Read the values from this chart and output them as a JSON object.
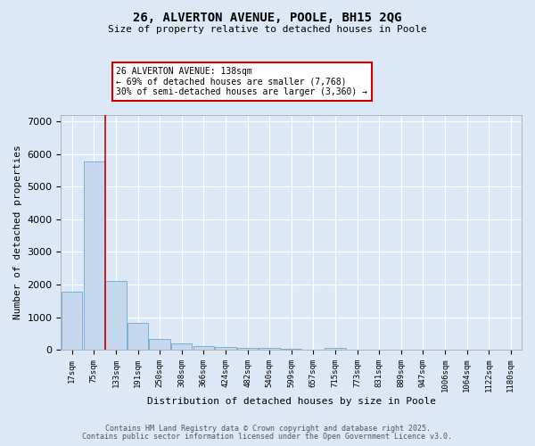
{
  "title1": "26, ALVERTON AVENUE, POOLE, BH15 2QG",
  "title2": "Size of property relative to detached houses in Poole",
  "xlabel": "Distribution of detached houses by size in Poole",
  "ylabel": "Number of detached properties",
  "categories": [
    "17sqm",
    "75sqm",
    "133sqm",
    "191sqm",
    "250sqm",
    "308sqm",
    "366sqm",
    "424sqm",
    "482sqm",
    "540sqm",
    "599sqm",
    "657sqm",
    "715sqm",
    "773sqm",
    "831sqm",
    "889sqm",
    "947sqm",
    "1006sqm",
    "1064sqm",
    "1122sqm",
    "1180sqm"
  ],
  "values": [
    1780,
    5780,
    2100,
    820,
    335,
    195,
    105,
    80,
    60,
    50,
    35,
    2,
    55,
    2,
    2,
    2,
    2,
    2,
    2,
    2,
    2
  ],
  "bar_color": "#c5d8ee",
  "bar_edge_color": "#7bafd4",
  "marker_index": 2,
  "marker_color": "#cc0000",
  "annotation_title": "26 ALVERTON AVENUE: 138sqm",
  "annotation_line1": "← 69% of detached houses are smaller (7,768)",
  "annotation_line2": "30% of semi-detached houses are larger (3,360) →",
  "annotation_box_color": "#cc0000",
  "annotation_bg": "#ffffff",
  "ylim": [
    0,
    7200
  ],
  "yticks": [
    0,
    1000,
    2000,
    3000,
    4000,
    5000,
    6000,
    7000
  ],
  "bg_color": "#dce8f5",
  "plot_bg_color": "#dce8f5",
  "grid_color": "#ffffff",
  "footer1": "Contains HM Land Registry data © Crown copyright and database right 2025.",
  "footer2": "Contains public sector information licensed under the Open Government Licence v3.0."
}
